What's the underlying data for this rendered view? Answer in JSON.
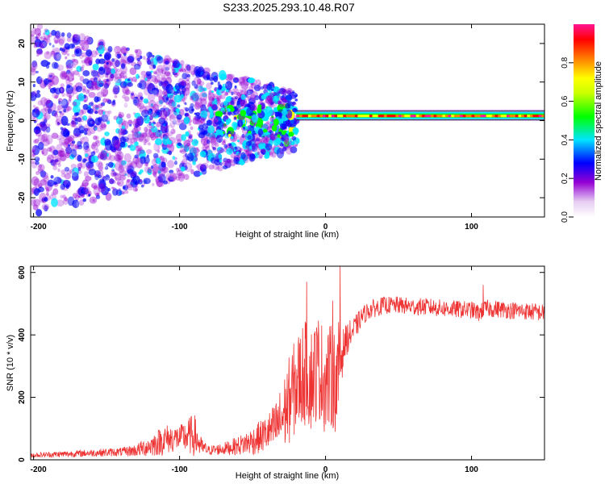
{
  "chart_data": [
    {
      "type": "heatmap",
      "title": "S233.2025.293.10.48.R07",
      "xlabel": "Height of straight line (km)",
      "ylabel": "Frequency (Hz)",
      "xlim": [
        -202,
        150
      ],
      "ylim": [
        -25,
        25
      ],
      "x_ticks": [
        -200,
        -100,
        0,
        100
      ],
      "y_ticks": [
        -20,
        -10,
        0,
        10,
        20
      ],
      "colorbar": {
        "label": "Normalized spectral amplitude",
        "range": [
          0.0,
          1.0
        ],
        "ticks": [
          0.0,
          0.2,
          0.4,
          0.6,
          0.8
        ],
        "colors": [
          "#ffffff",
          "#9400d3",
          "#0000ff",
          "#00e5ff",
          "#00ff00",
          "#ffff00",
          "#ff8000",
          "#ff0000",
          "#ff1493"
        ]
      },
      "carrier_line": {
        "frequency_hz": 1,
        "x_start_km": -20,
        "x_end_km": 150
      },
      "noise_band": {
        "x_start_km": -202,
        "x_end_km": -20,
        "frequency_spread_hz": 25
      }
    },
    {
      "type": "line",
      "xlabel": "Height of straight line (km)",
      "ylabel": "SNR (10 * v/v)",
      "xlim": [
        -202,
        150
      ],
      "ylim": [
        0,
        620
      ],
      "x_ticks": [
        -200,
        -100,
        0,
        100
      ],
      "y_ticks": [
        0,
        200,
        400,
        600
      ],
      "line_color": "#ee3333",
      "series": [
        {
          "name": "SNR",
          "x": [
            -202,
            -180,
            -160,
            -140,
            -130,
            -120,
            -110,
            -100,
            -95,
            -90,
            -85,
            -80,
            -70,
            -60,
            -50,
            -40,
            -35,
            -30,
            -25,
            -20,
            -15,
            -10,
            -5,
            0,
            5,
            8,
            10,
            12,
            15,
            20,
            25,
            30,
            40,
            50,
            60,
            70,
            80,
            90,
            100,
            105,
            110,
            120,
            130,
            140,
            150
          ],
          "values": [
            15,
            18,
            22,
            25,
            30,
            45,
            65,
            70,
            75,
            80,
            40,
            30,
            35,
            45,
            60,
            85,
            100,
            130,
            190,
            240,
            280,
            260,
            300,
            250,
            270,
            230,
            320,
            360,
            390,
            420,
            460,
            480,
            495,
            495,
            490,
            490,
            485,
            482,
            480,
            470,
            485,
            482,
            478,
            475,
            470
          ],
          "noise": [
            8,
            10,
            12,
            14,
            20,
            35,
            50,
            40,
            55,
            70,
            30,
            15,
            20,
            30,
            45,
            60,
            80,
            110,
            140,
            160,
            170,
            170,
            170,
            170,
            170,
            150,
            200,
            60,
            50,
            40,
            30,
            30,
            28,
            28,
            28,
            28,
            28,
            28,
            28,
            28,
            28,
            28,
            28,
            28,
            28
          ],
          "spikes": [
            {
              "x": 10,
              "value": 620
            },
            {
              "x": -13,
              "value": 570
            },
            {
              "x": 5,
              "value": 510
            },
            {
              "x": 108,
              "value": 560
            }
          ]
        }
      ]
    }
  ]
}
